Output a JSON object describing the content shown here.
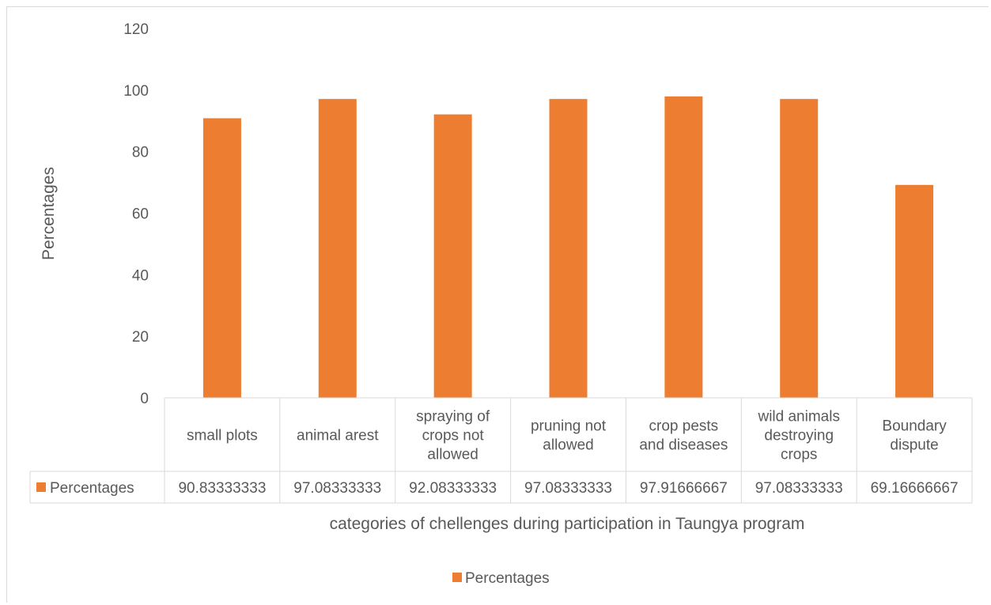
{
  "chart_data": {
    "type": "bar",
    "title": "",
    "xlabel": "categories of chellenges during participation in Taungya program",
    "ylabel": "Percentages",
    "ylim": [
      0,
      120
    ],
    "yticks": [
      0,
      20,
      40,
      60,
      80,
      100,
      120
    ],
    "categories": [
      [
        "small plots"
      ],
      [
        "animal arest"
      ],
      [
        "spraying of",
        "crops not",
        "allowed"
      ],
      [
        "pruning not",
        "allowed"
      ],
      [
        "crop pests",
        "and diseases"
      ],
      [
        "wild animals",
        "destroying",
        "crops"
      ],
      [
        "Boundary",
        "dispute"
      ]
    ],
    "series": [
      {
        "name": "Percentages",
        "color": "#ED7D31",
        "values": [
          90.83333333,
          97.08333333,
          92.08333333,
          97.08333333,
          97.91666667,
          97.08333333,
          69.16666667
        ],
        "value_labels": [
          "90.83333333",
          "97.08333333",
          "92.08333333",
          "97.08333333",
          "97.91666667",
          "97.08333333",
          "69.16666667"
        ]
      }
    ],
    "grid": false,
    "legend": {
      "position": "bottom",
      "entries": [
        "Percentages"
      ]
    },
    "data_table": true
  }
}
